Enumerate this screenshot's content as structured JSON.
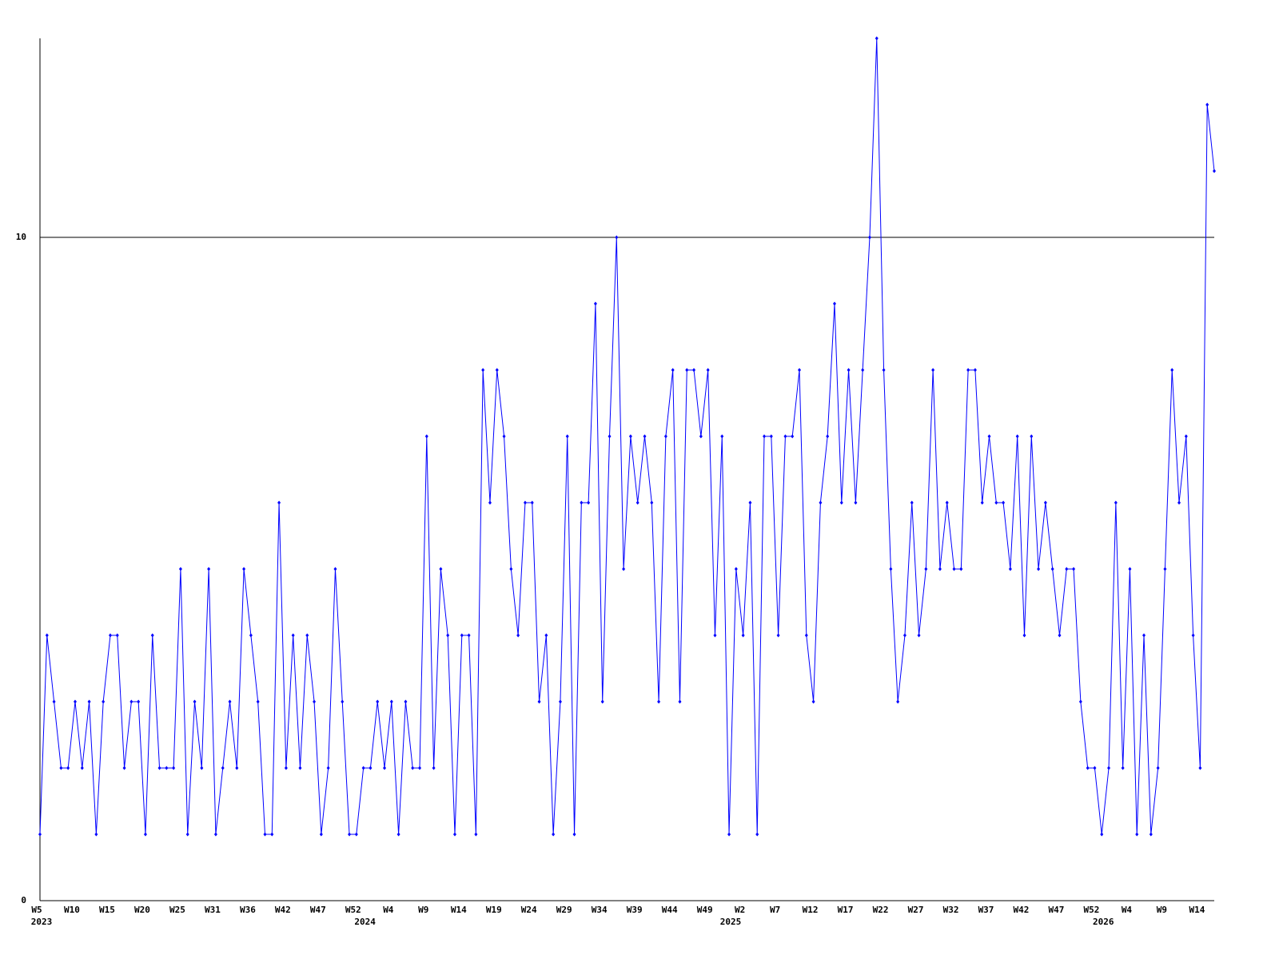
{
  "chart_data": {
    "type": "line",
    "categories": [
      "W5",
      null,
      null,
      null,
      null,
      "W10",
      null,
      null,
      null,
      null,
      "W15",
      null,
      null,
      null,
      null,
      "W20",
      null,
      null,
      null,
      null,
      "W25",
      null,
      null,
      null,
      null,
      "W31",
      null,
      null,
      null,
      null,
      "W36",
      null,
      null,
      null,
      null,
      "W42",
      null,
      null,
      null,
      null,
      "W47",
      null,
      null,
      null,
      null,
      "W52",
      null,
      null,
      null,
      null,
      "W4",
      null,
      null,
      null,
      null,
      "W9",
      null,
      null,
      null,
      null,
      "W14",
      null,
      null,
      null,
      null,
      "W19",
      null,
      null,
      null,
      null,
      "W24",
      null,
      null,
      null,
      null,
      "W29",
      null,
      null,
      null,
      null,
      "W34",
      null,
      null,
      null,
      null,
      "W39",
      null,
      null,
      null,
      null,
      "W44",
      null,
      null,
      null,
      null,
      "W49",
      null,
      null,
      null,
      null,
      "W2",
      null,
      null,
      null,
      null,
      "W7",
      null,
      null,
      null,
      null,
      "W12",
      null,
      null,
      null,
      null,
      "W17",
      null,
      null,
      null,
      null,
      "W22",
      null,
      null,
      null,
      null,
      "W27",
      null,
      null,
      null,
      null,
      "W32",
      null,
      null,
      null,
      null,
      "W37",
      null,
      null,
      null,
      null,
      "W42",
      null,
      null,
      null,
      null,
      "W47",
      null,
      null,
      null,
      null,
      "W52",
      null,
      null,
      null,
      null,
      "W4",
      null,
      null,
      null,
      null,
      "W9",
      null,
      null,
      null,
      null,
      "W14",
      null,
      null
    ],
    "x_years": [
      "2023",
      null,
      null,
      null,
      null,
      null,
      null,
      null,
      null,
      null,
      null,
      null,
      null,
      null,
      null,
      null,
      null,
      null,
      null,
      null,
      null,
      null,
      null,
      null,
      null,
      null,
      null,
      null,
      null,
      null,
      null,
      null,
      null,
      null,
      null,
      null,
      null,
      null,
      null,
      null,
      null,
      null,
      null,
      null,
      null,
      null,
      "2024",
      null,
      null,
      null,
      null,
      null,
      null,
      null,
      null,
      null,
      null,
      null,
      null,
      null,
      null,
      null,
      null,
      null,
      null,
      null,
      null,
      null,
      null,
      null,
      null,
      null,
      null,
      null,
      null,
      null,
      null,
      null,
      null,
      null,
      null,
      null,
      null,
      null,
      null,
      null,
      null,
      null,
      null,
      null,
      null,
      null,
      null,
      null,
      null,
      null,
      null,
      null,
      "2025",
      null,
      null,
      null,
      null,
      null,
      null,
      null,
      null,
      null,
      null,
      null,
      null,
      null,
      null,
      null,
      null,
      null,
      null,
      null,
      null,
      null,
      null,
      null,
      null,
      null,
      null,
      null,
      null,
      null,
      null,
      null,
      null,
      null,
      null,
      null,
      null,
      null,
      null,
      null,
      null,
      null,
      null,
      null,
      null,
      null,
      null,
      null,
      null,
      null,
      null,
      null,
      null,
      "2026",
      null,
      null,
      null,
      null,
      null,
      null,
      null,
      null,
      null,
      null,
      null,
      null,
      null,
      null,
      null,
      null
    ],
    "values": [
      1,
      4,
      3,
      2,
      2,
      3,
      2,
      3,
      1,
      3,
      4,
      4,
      2,
      3,
      3,
      1,
      4,
      2,
      2,
      2,
      5,
      1,
      3,
      2,
      5,
      1,
      2,
      3,
      2,
      5,
      4,
      3,
      1,
      1,
      6,
      2,
      4,
      2,
      4,
      3,
      1,
      2,
      5,
      3,
      1,
      1,
      2,
      2,
      3,
      2,
      3,
      1,
      3,
      2,
      2,
      7,
      2,
      5,
      4,
      1,
      4,
      4,
      1,
      8,
      6,
      8,
      7,
      5,
      4,
      6,
      6,
      3,
      4,
      1,
      3,
      7,
      1,
      6,
      6,
      9,
      3,
      7,
      10,
      5,
      7,
      6,
      7,
      6,
      3,
      7,
      8,
      3,
      8,
      8,
      7,
      8,
      4,
      7,
      1,
      5,
      4,
      6,
      1,
      7,
      7,
      4,
      7,
      7,
      8,
      4,
      3,
      6,
      7,
      9,
      6,
      8,
      6,
      8,
      10,
      13,
      8,
      5,
      3,
      4,
      6,
      4,
      5,
      8,
      5,
      6,
      5,
      5,
      8,
      8,
      6,
      7,
      6,
      6,
      5,
      7,
      4,
      7,
      5,
      6,
      5,
      4,
      5,
      5,
      3,
      2,
      2,
      1,
      2,
      6,
      2,
      5,
      1,
      4,
      1,
      2,
      5,
      8,
      6,
      7,
      4,
      2,
      12,
      11
    ],
    "color": "#0000ff",
    "ylim": [
      0,
      13
    ],
    "yticks": [
      0,
      10
    ],
    "grid": true
  }
}
